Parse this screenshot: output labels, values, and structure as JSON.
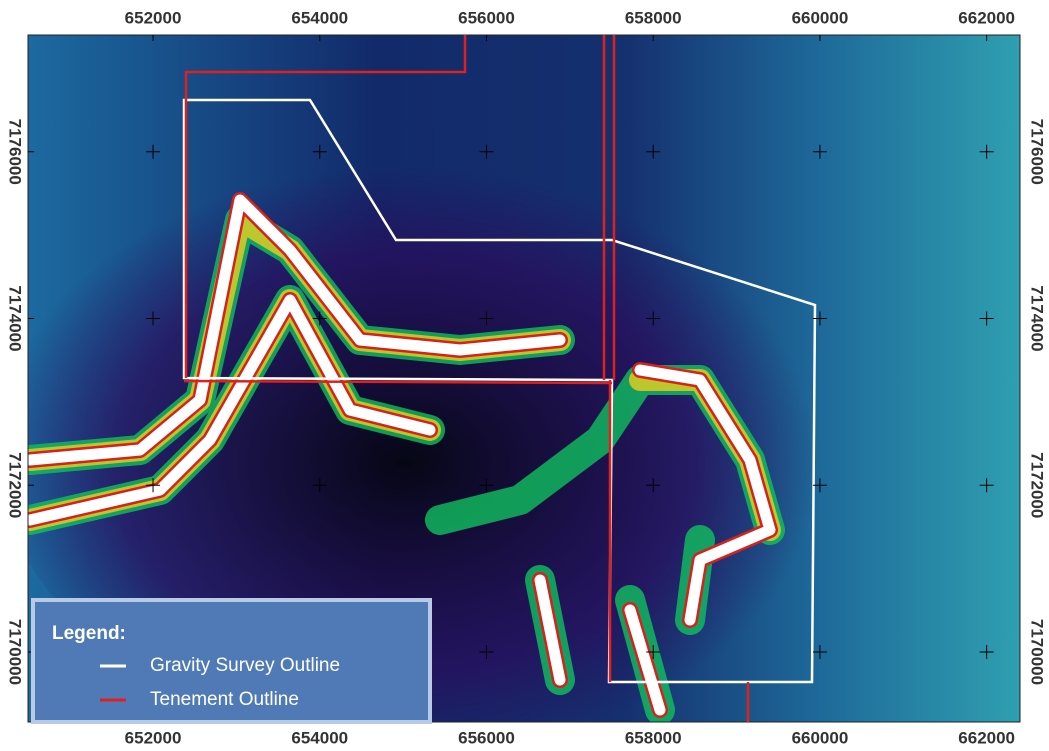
{
  "map": {
    "xlim": [
      650500,
      662400
    ],
    "ylim": [
      7169160,
      7177400
    ],
    "xticks": [
      652000,
      654000,
      656000,
      658000,
      660000,
      662000
    ],
    "yticks": [
      7170000,
      7172000,
      7174000,
      7176000
    ]
  },
  "legend": {
    "title": "Legend:",
    "items": [
      {
        "label": "Gravity Survey Outline",
        "color": "#ffffff"
      },
      {
        "label": "Tenement Outline",
        "color": "#e0201c"
      }
    ]
  }
}
